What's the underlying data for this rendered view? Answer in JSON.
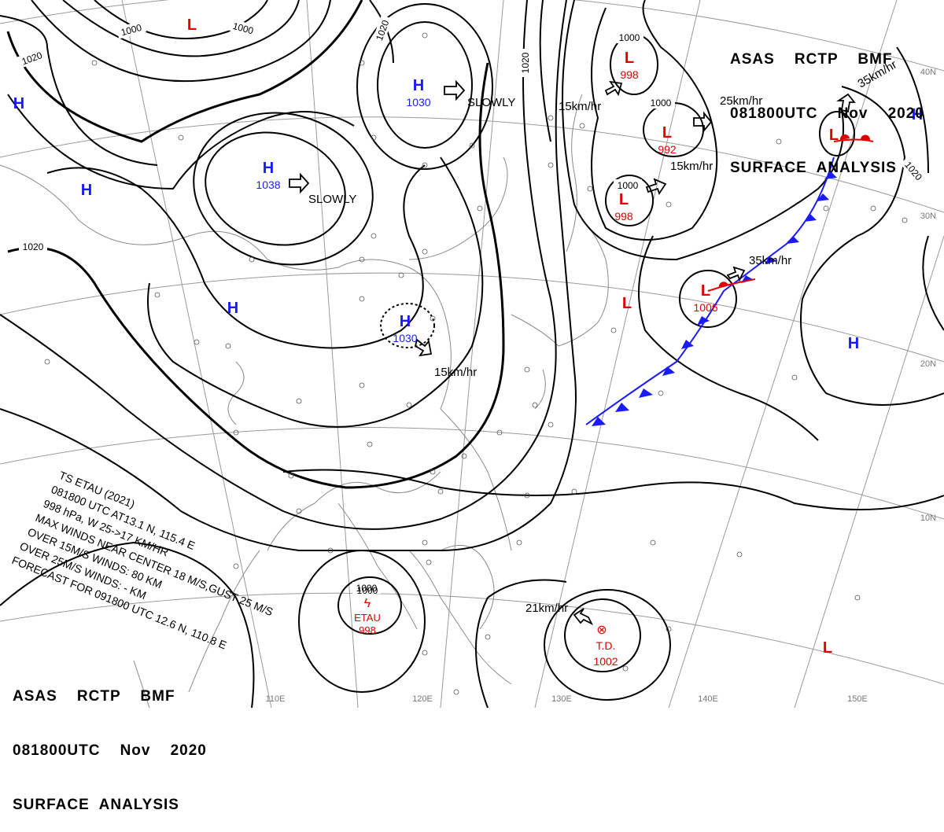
{
  "header": {
    "line1": "ASAS    RCTP    BMF",
    "line2": "081800UTC    Nov    2020",
    "line3": "SURFACE  ANALYSIS"
  },
  "footer": {
    "line1": "ASAS    RCTP    BMF",
    "line2": "081800UTC    Nov    2020",
    "line3": "SURFACE  ANALYSIS"
  },
  "storm_info": [
    "TS  ETAU (2021)",
    "081800 UTC  AT13.1 N, 115.4 E",
    "998 hPa, W  25->17 KM/HR",
    "MAX WINDS NEAR CENTER 18 M/S,GUST 25 M/S",
    "OVER 15M/S WINDS: 80 KM",
    "OVER 25M/S WINDS: - KM",
    "FORECAST FOR 091800 UTC 12.6 N, 110.8 E"
  ],
  "lon_labels": [
    "110E",
    "120E",
    "130E",
    "140E",
    "150E"
  ],
  "lat_labels": [
    "40N",
    "30N",
    "20N",
    "10N"
  ],
  "isobar_labels": [
    "1000",
    "1000",
    "1020",
    "1020",
    "1020",
    "1020",
    "1020",
    "1000",
    "1000",
    "1000",
    "1000"
  ],
  "pressure_centers": [
    {
      "type": "H",
      "value": "1030"
    },
    {
      "type": "H",
      "value": "1038"
    },
    {
      "type": "H",
      "value": "1030"
    },
    {
      "type": "H",
      "value": ""
    },
    {
      "type": "H",
      "value": ""
    },
    {
      "type": "H",
      "value": ""
    },
    {
      "type": "H",
      "value": ""
    },
    {
      "type": "H",
      "value": ""
    },
    {
      "type": "L",
      "value": ""
    },
    {
      "type": "L",
      "value": "998"
    },
    {
      "type": "L",
      "value": "992"
    },
    {
      "type": "L",
      "value": "998"
    },
    {
      "type": "L",
      "value": "1006"
    },
    {
      "type": "L",
      "value": ""
    },
    {
      "type": "L",
      "value": ""
    },
    {
      "type": "L",
      "value": ""
    }
  ],
  "movements": [
    "SLOWLY",
    "SLOWLY",
    "15km/hr",
    "15km/hr",
    "25km/hr",
    "15km/hr",
    "35km/hr",
    "35km/hr",
    "21km/hr"
  ],
  "storms": [
    {
      "name": "ETAU",
      "pressure": "998",
      "isobar": "1000"
    },
    {
      "name": "T.D.",
      "pressure": "1002"
    }
  ],
  "colors": {
    "high": "#1a1aff",
    "low": "#e00000",
    "isobar": "#000000",
    "grid": "#999999"
  }
}
